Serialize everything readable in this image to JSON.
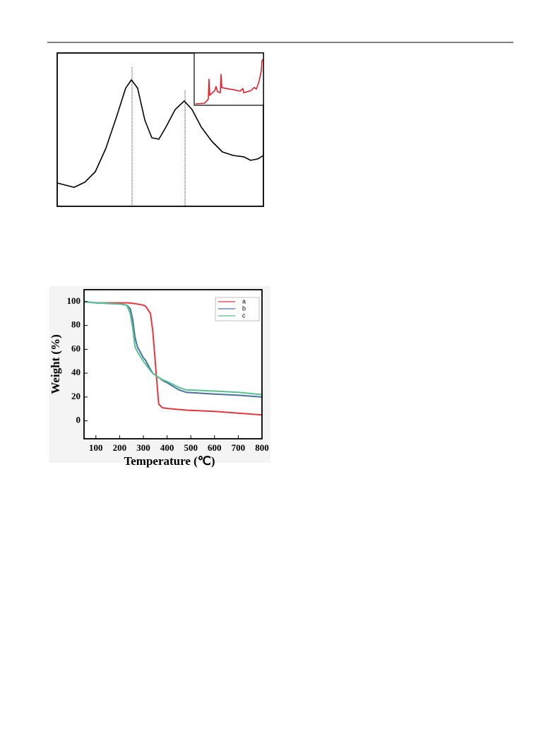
{
  "chart_data": [
    {
      "type": "line",
      "color": "#000000",
      "x": [
        0,
        8.2,
        13.4,
        18.5,
        23.6,
        28.8,
        33.2,
        36.0,
        39.0,
        42.5,
        45.9,
        49.3,
        52.7,
        57.2,
        61.6,
        65.4,
        69.9,
        75.0,
        80.1,
        85.3,
        90.4,
        93.8,
        97.3,
        100
      ],
      "values": [
        15.2,
        12.4,
        15.7,
        22.6,
        37.8,
        58.5,
        77.0,
        82.5,
        77.0,
        56.2,
        44.7,
        43.8,
        51.6,
        63.1,
        68.7,
        63.1,
        51.6,
        42.4,
        35.5,
        33.2,
        32.3,
        30.0,
        30.9,
        33.2
      ],
      "vlines": [
        36.3,
        62.0
      ],
      "xlim": [
        0,
        100
      ],
      "ylim": [
        0,
        100
      ]
    },
    {
      "type": "line",
      "color": "#e8202a",
      "x": [
        2,
        15.3,
        20.4,
        21.4,
        22.4,
        25.5,
        29.6,
        31.6,
        33.7,
        37.8,
        38.8,
        39.8,
        45.9,
        56.1,
        66.3,
        70.4,
        71.4,
        81.6,
        86.7,
        89.8,
        92.9,
        94.9,
        96.9,
        98,
        99
      ],
      "values": [
        2.7,
        4,
        12,
        50,
        19,
        23,
        28,
        36,
        26,
        24,
        59,
        34,
        32,
        30,
        27,
        32,
        24,
        28,
        34,
        31,
        42,
        53,
        66,
        85,
        88
      ],
      "xlim": [
        0,
        100
      ],
      "ylim": [
        0,
        100
      ]
    },
    {
      "type": "line",
      "xlabel": "Temperature (℃)",
      "ylabel": "Weight (%)",
      "x": [
        50,
        100,
        200,
        230,
        245,
        255,
        265,
        275,
        300,
        310,
        330,
        340,
        350,
        360,
        365,
        380,
        400,
        450,
        480,
        600,
        700,
        800
      ],
      "series": [
        {
          "name": "a",
          "color": "#e8373c",
          "values": [
            100,
            99,
            99,
            99,
            98.8,
            98.5,
            98.3,
            98,
            97,
            96,
            90,
            75,
            50,
            25,
            14,
            11,
            10.5,
            9.5,
            9,
            8,
            6.5,
            5
          ]
        },
        {
          "name": "b",
          "color": "#4a6fa5",
          "values": [
            100,
            99,
            98,
            97,
            94,
            85,
            70,
            62,
            53,
            50.5,
            43,
            40,
            38.5,
            37,
            36.5,
            34,
            32,
            26,
            24,
            22.5,
            21.5,
            20
          ]
        },
        {
          "name": "c",
          "color": "#52c48e",
          "values": [
            100,
            99,
            98,
            97,
            90,
            78,
            62,
            58,
            50,
            47.5,
            42,
            40,
            38.5,
            37,
            36.5,
            34.5,
            33,
            28,
            26,
            25,
            24,
            22
          ]
        }
      ],
      "xlim": [
        50,
        800
      ],
      "ylim": [
        -15,
        110
      ],
      "xticks": [
        100,
        200,
        300,
        400,
        500,
        600,
        700,
        800
      ],
      "yticks": [
        0,
        20,
        40,
        60,
        80,
        100
      ]
    }
  ]
}
